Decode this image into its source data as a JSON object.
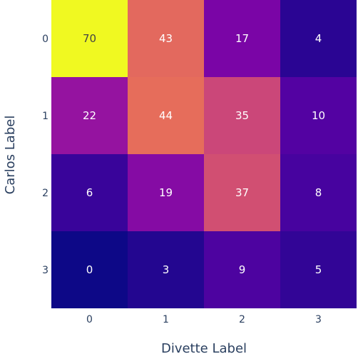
{
  "chart_data": {
    "type": "heatmap",
    "title": "",
    "xlabel": "Divette Label",
    "ylabel": "Carlos Label",
    "x_categories": [
      "0",
      "1",
      "2",
      "3"
    ],
    "y_categories": [
      "0",
      "1",
      "2",
      "3"
    ],
    "z": [
      [
        70,
        43,
        17,
        4
      ],
      [
        22,
        44,
        35,
        10
      ],
      [
        6,
        19,
        37,
        8
      ],
      [
        0,
        3,
        9,
        5
      ]
    ],
    "zmin": 0,
    "zmax": 70,
    "colorscale": "plasma",
    "colorbar": false,
    "grid": false
  }
}
